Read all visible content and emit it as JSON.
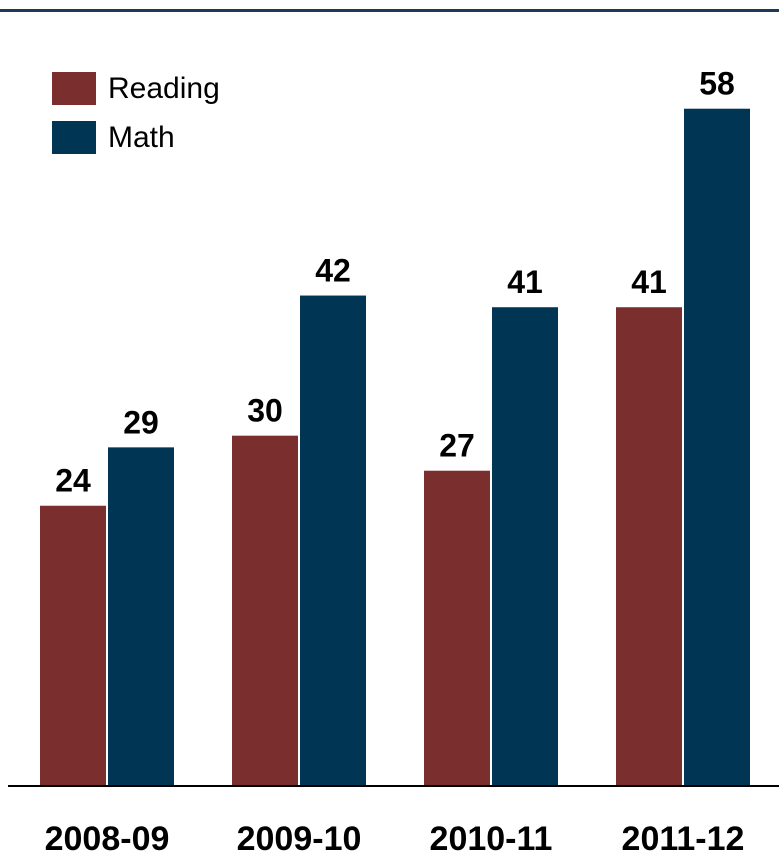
{
  "chart_data": {
    "type": "bar",
    "categories": [
      "2008-09",
      "2009-10",
      "2010-11",
      "2011-12"
    ],
    "series": [
      {
        "name": "Reading",
        "color": "#7a2e2e",
        "values": [
          24,
          30,
          27,
          41
        ]
      },
      {
        "name": "Math",
        "color": "#003654",
        "values": [
          29,
          42,
          41,
          58
        ]
      }
    ],
    "title": "",
    "xlabel": "",
    "ylabel": "",
    "ylim": [
      0,
      62
    ],
    "grid": false,
    "legend": "top-left",
    "data_labels": true
  },
  "legend": {
    "items": [
      {
        "label": "Reading",
        "color": "#7a2e2e"
      },
      {
        "label": "Math",
        "color": "#003654"
      }
    ]
  }
}
